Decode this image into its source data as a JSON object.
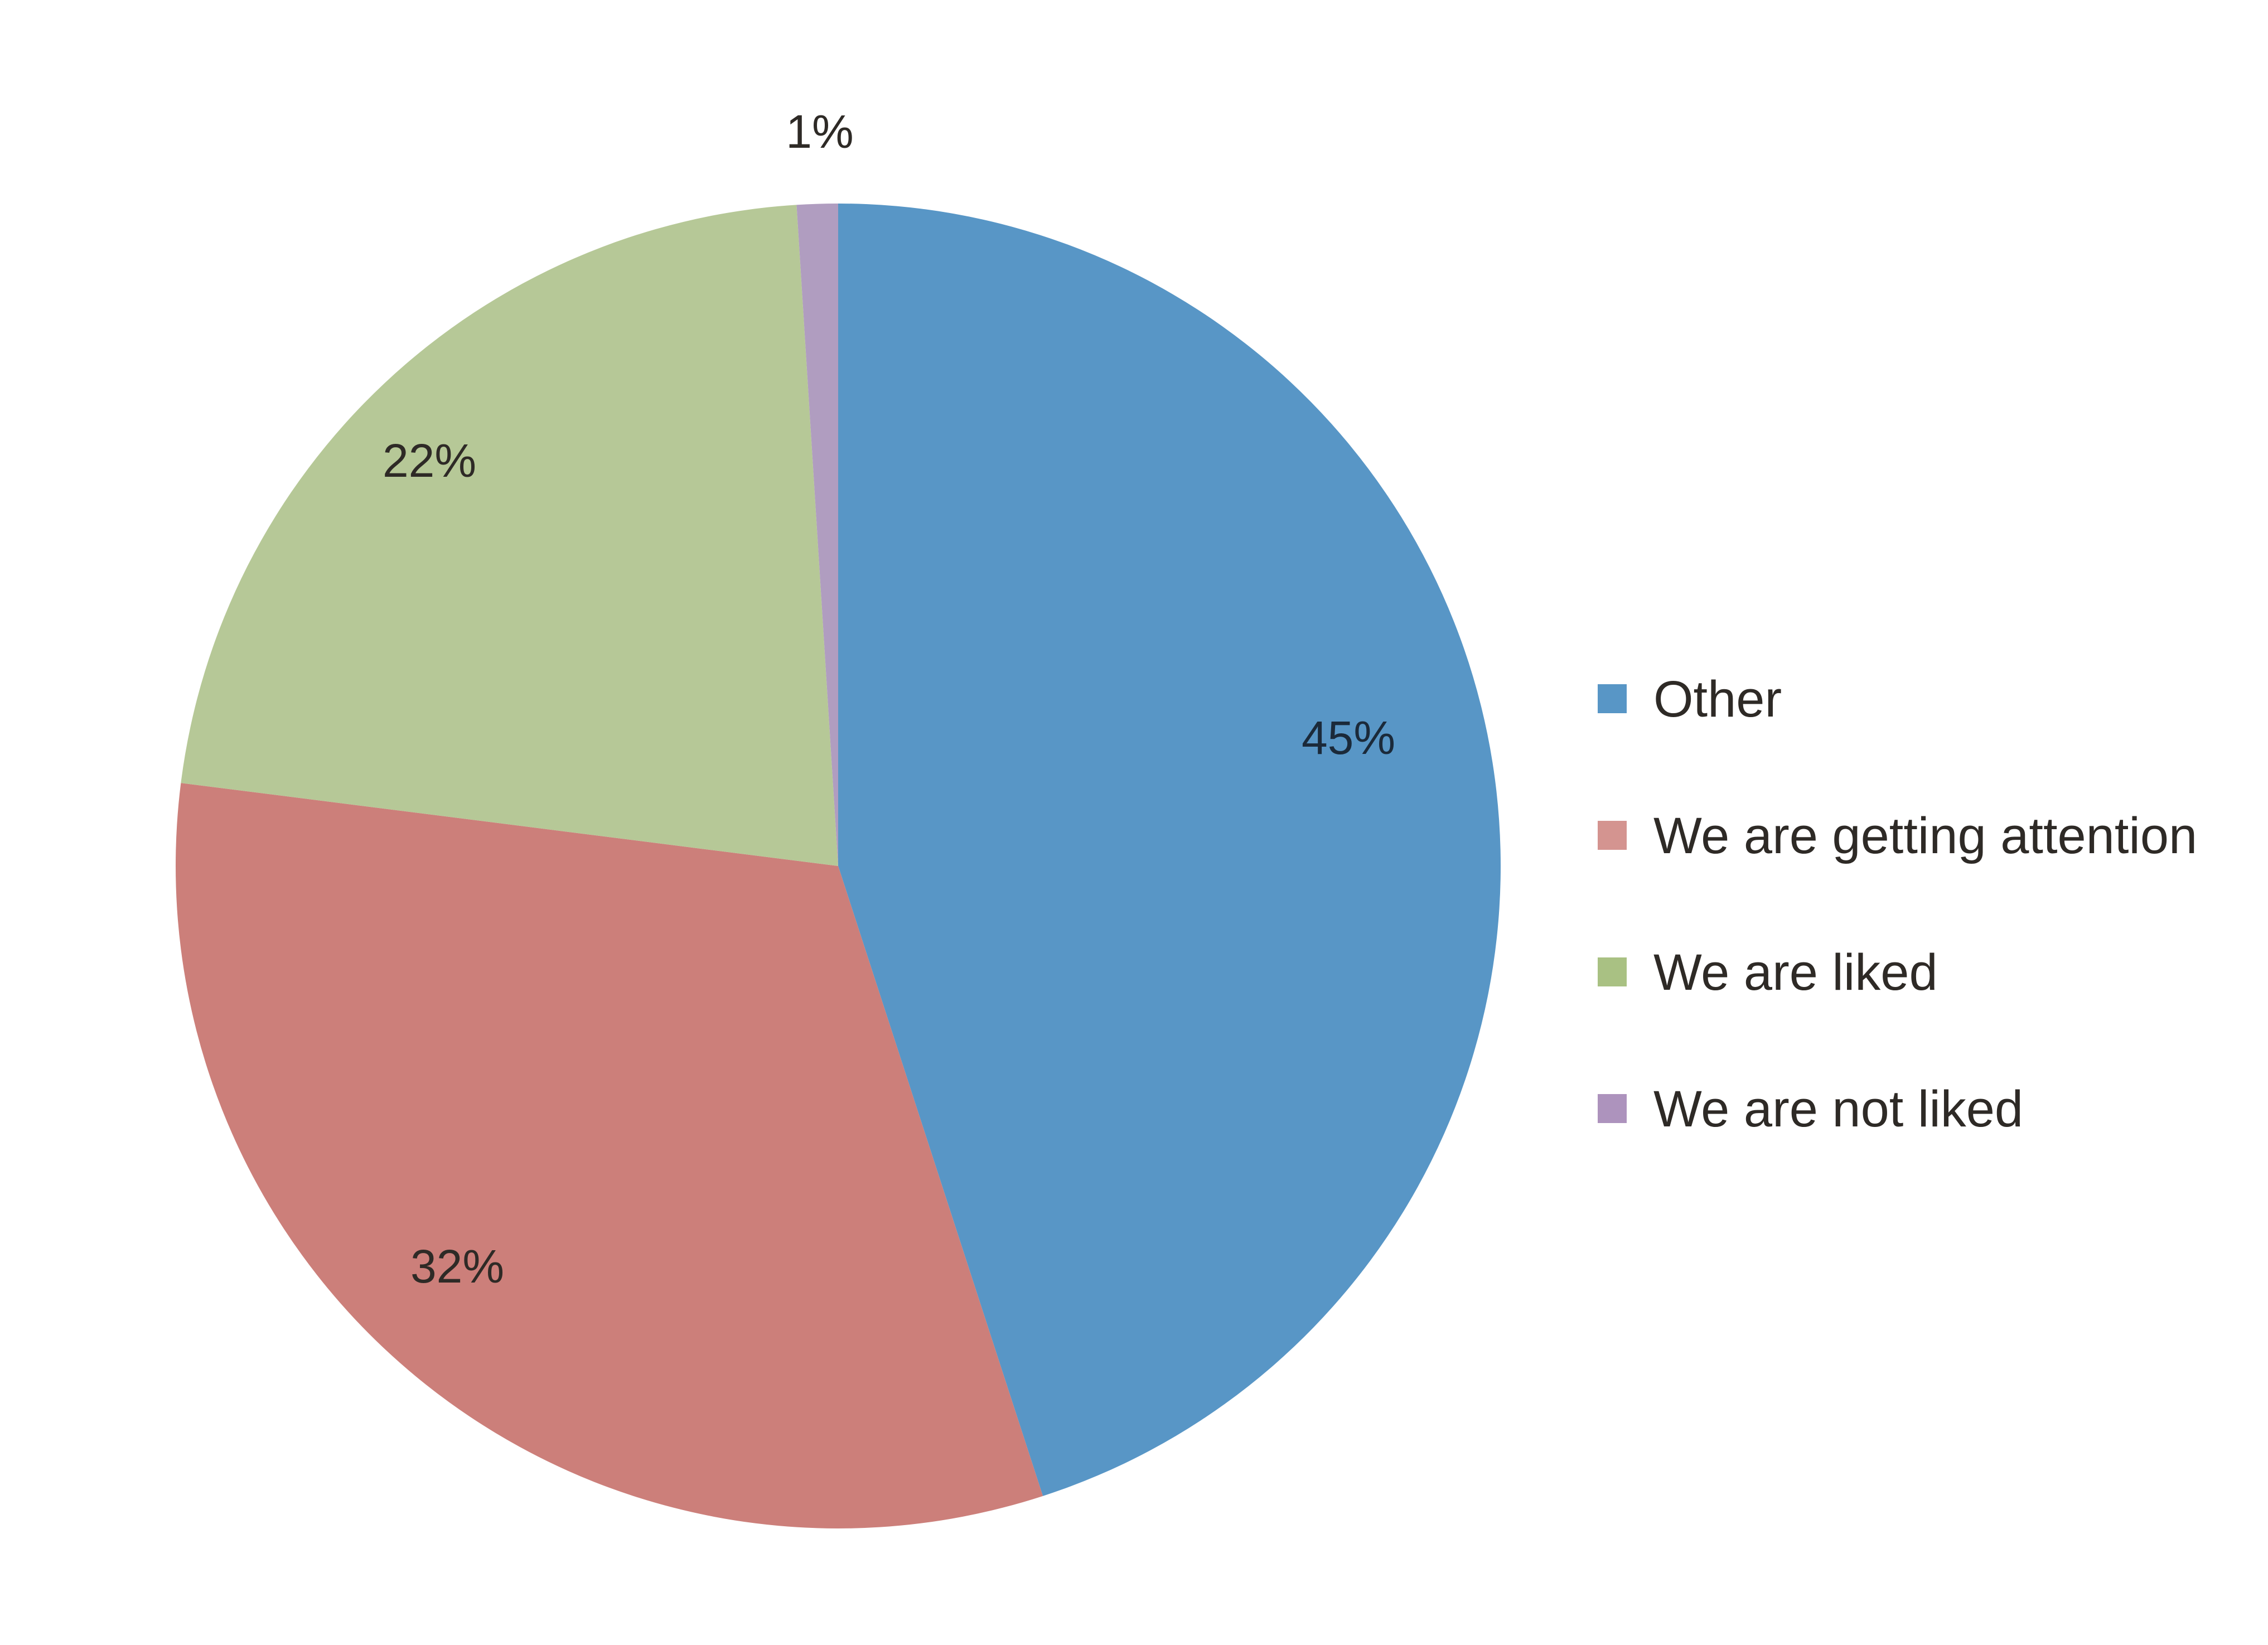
{
  "chart_data": {
    "type": "pie",
    "title": "",
    "categories": [
      "Other",
      "We are getting attention",
      "We are liked",
      "We are not liked"
    ],
    "values": [
      45,
      32,
      22,
      1
    ],
    "labels": [
      "45%",
      "32%",
      "22%",
      "1%"
    ],
    "colors": [
      "#5896c6",
      "#cc7f7a",
      "#b6c897",
      "#b09dc0"
    ],
    "legend_colors": [
      "#5896c6",
      "#d49490",
      "#a9c183",
      "#ad93bd"
    ],
    "start": "12 o'clock",
    "direction": "clockwise",
    "legend": "right"
  }
}
